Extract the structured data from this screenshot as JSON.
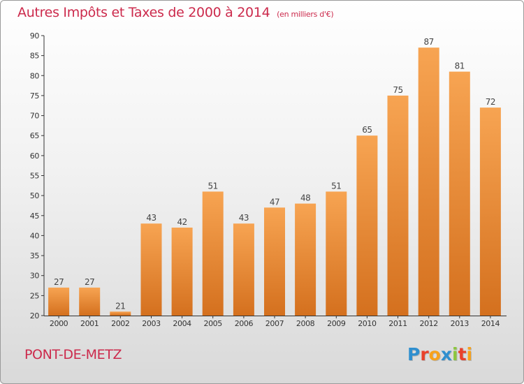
{
  "header": {
    "title": "Autres Impôts et Taxes de 2000 à 2014",
    "unit": "(en milliers d'€)"
  },
  "footer": {
    "city": "PONT-DE-METZ",
    "logo": [
      "P",
      "r",
      "o",
      "x",
      "i",
      "t",
      "i"
    ]
  },
  "colors": {
    "title": "#cc2a4c",
    "bar_top": "#f7a452",
    "bar_bottom": "#d4701e",
    "axis": "#333333"
  },
  "chart_data": {
    "type": "bar",
    "title": "Autres Impôts et Taxes de 2000 à 2014",
    "xlabel": "",
    "ylabel": "",
    "categories": [
      "2000",
      "2001",
      "2002",
      "2003",
      "2004",
      "2005",
      "2006",
      "2007",
      "2008",
      "2009",
      "2010",
      "2011",
      "2012",
      "2013",
      "2014"
    ],
    "values": [
      27,
      27,
      21,
      43,
      42,
      51,
      43,
      47,
      48,
      51,
      65,
      75,
      87,
      81,
      72
    ],
    "ylim": [
      20,
      90
    ],
    "yticks": [
      20,
      25,
      30,
      35,
      40,
      45,
      50,
      55,
      60,
      65,
      70,
      75,
      80,
      85,
      90
    ],
    "grid": false,
    "data_labels": true
  }
}
